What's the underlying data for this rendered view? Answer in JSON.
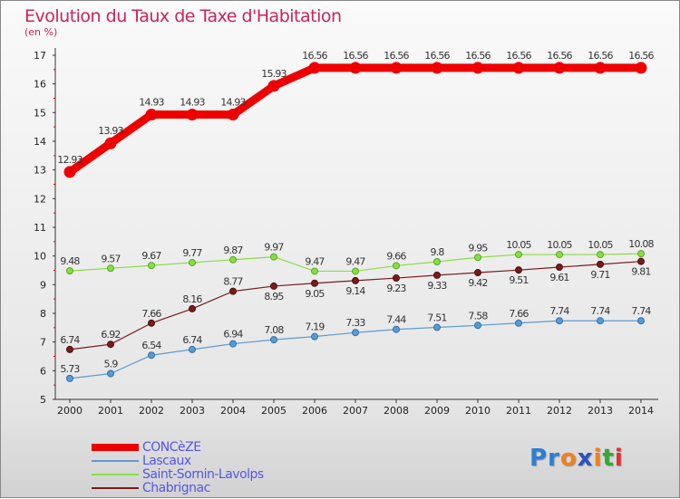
{
  "chart_data": {
    "type": "line",
    "title": "Evolution du Taux de Taxe d'Habitation",
    "ylabel": "(en %)",
    "xlabel": "",
    "ylim": [
      5,
      17
    ],
    "yticks": [
      5,
      6,
      7,
      8,
      9,
      10,
      11,
      12,
      13,
      14,
      15,
      16,
      17
    ],
    "x": [
      2000,
      2001,
      2002,
      2003,
      2004,
      2005,
      2006,
      2007,
      2008,
      2009,
      2010,
      2011,
      2012,
      2013,
      2014
    ],
    "legend_position": "bottom-left",
    "series": [
      {
        "name": "CONCèZE",
        "color": "#ee0000",
        "values": [
          12.93,
          13.93,
          14.93,
          14.93,
          14.93,
          15.93,
          16.56,
          16.56,
          16.56,
          16.56,
          16.56,
          16.56,
          16.56,
          16.56,
          16.56
        ]
      },
      {
        "name": "Lascaux",
        "color": "#5b9bd5",
        "values": [
          5.73,
          5.9,
          6.54,
          6.74,
          6.94,
          7.08,
          7.19,
          7.33,
          7.44,
          7.51,
          7.58,
          7.66,
          7.74,
          7.74,
          7.74
        ]
      },
      {
        "name": "Saint-Sornin-Lavolps",
        "color": "#88dd44",
        "values": [
          9.48,
          9.57,
          9.67,
          9.77,
          9.87,
          9.97,
          9.47,
          9.47,
          9.66,
          9.8,
          9.95,
          10.05,
          10.05,
          10.05,
          10.08
        ]
      },
      {
        "name": "Chabrignac",
        "color": "#7a1a1a",
        "values": [
          6.74,
          6.92,
          7.66,
          8.16,
          8.77,
          8.95,
          9.05,
          9.14,
          9.23,
          9.33,
          9.42,
          9.51,
          9.61,
          9.71,
          9.81
        ]
      }
    ]
  },
  "logo": {
    "text": "Proxiti"
  }
}
